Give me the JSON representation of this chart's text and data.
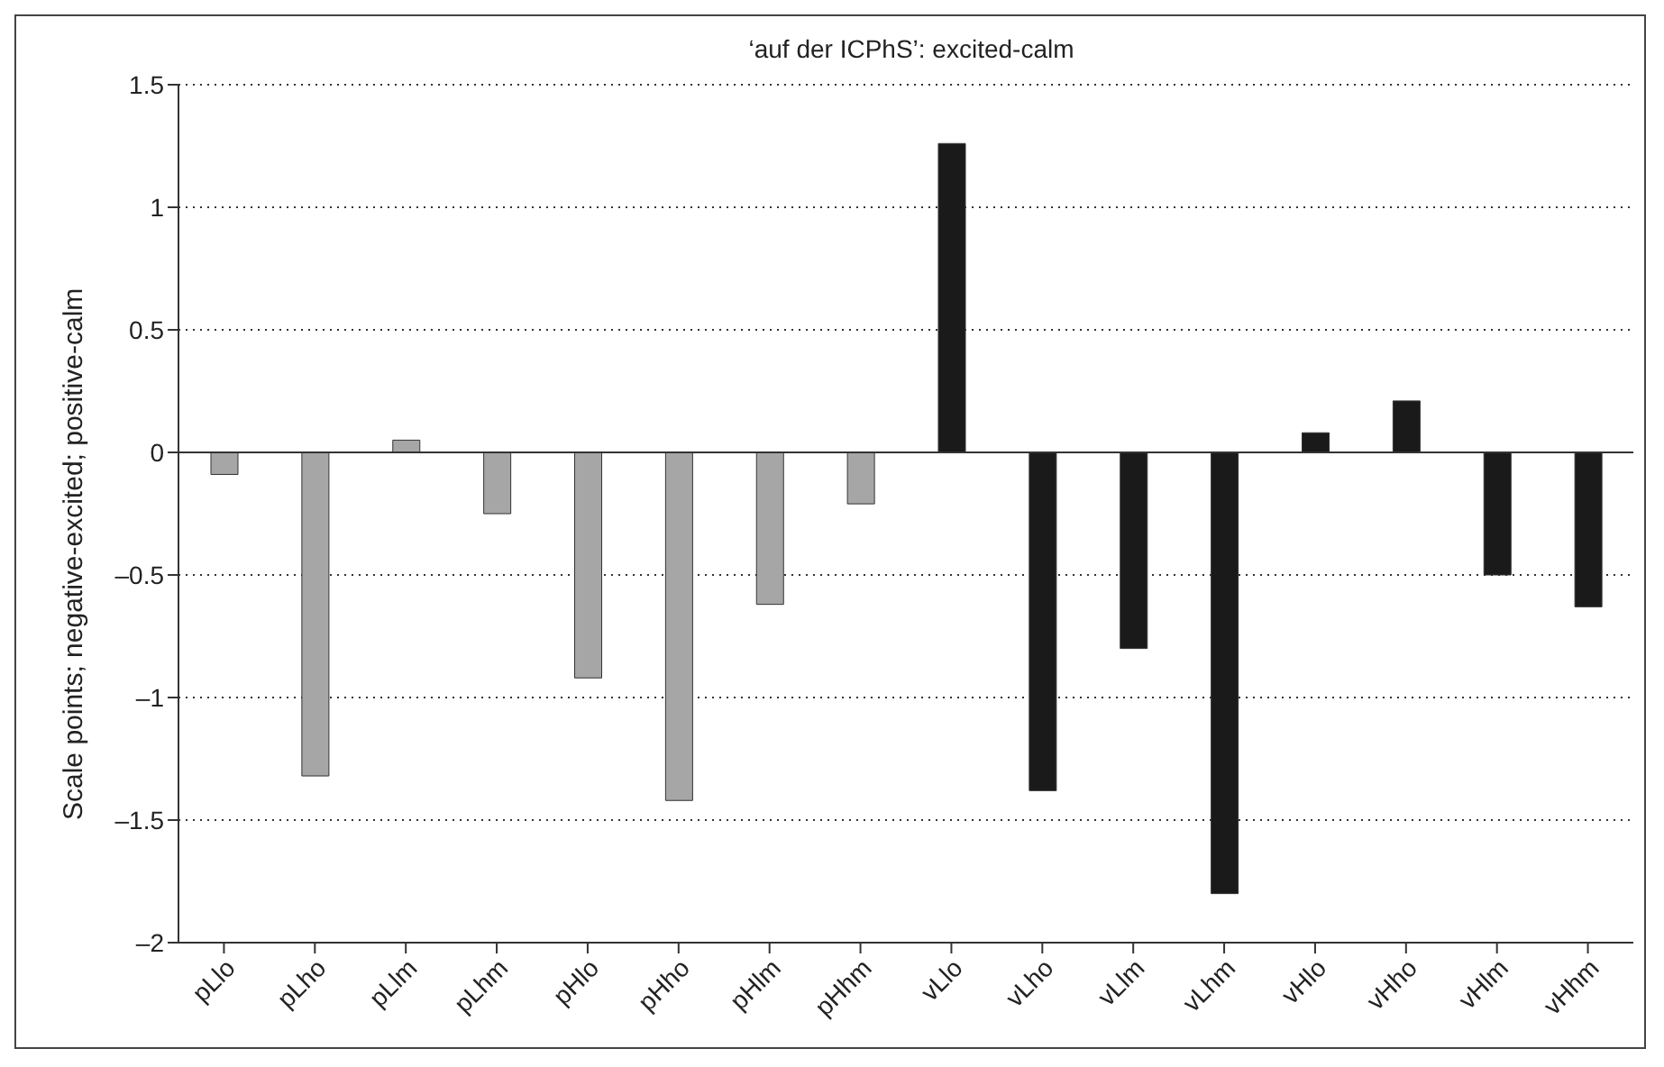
{
  "chart_data": {
    "type": "bar",
    "title": "‘auf der ICPhS’: excited-calm",
    "ylabel": "Scale points; negative-excited; positive-calm",
    "categories": [
      "pLlo",
      "pLho",
      "pLlm",
      "pLhm",
      "pHlo",
      "pHho",
      "pHlm",
      "pHhm",
      "vLlo",
      "vLho",
      "vLlm",
      "vLhm",
      "vHlo",
      "vHho",
      "vHlm",
      "vHhm"
    ],
    "values": [
      -0.09,
      -1.32,
      0.05,
      -0.25,
      -0.92,
      -1.42,
      -0.62,
      -0.21,
      1.26,
      -1.38,
      -0.8,
      -1.8,
      0.08,
      0.21,
      -0.5,
      -0.63
    ],
    "colors": [
      "#a6a6a6",
      "#a6a6a6",
      "#a6a6a6",
      "#a6a6a6",
      "#a6a6a6",
      "#a6a6a6",
      "#a6a6a6",
      "#a6a6a6",
      "#1a1a1a",
      "#1a1a1a",
      "#1a1a1a",
      "#1a1a1a",
      "#1a1a1a",
      "#1a1a1a",
      "#1a1a1a",
      "#1a1a1a"
    ],
    "ylim": [
      -2,
      1.5
    ],
    "yticks": [
      {
        "value": -2,
        "label": "–2"
      },
      {
        "value": -1.5,
        "label": "–1.5"
      },
      {
        "value": -1,
        "label": "–1"
      },
      {
        "value": -0.5,
        "label": "–0.5"
      },
      0,
      0.5,
      1,
      1.5
    ],
    "grid": "y"
  }
}
